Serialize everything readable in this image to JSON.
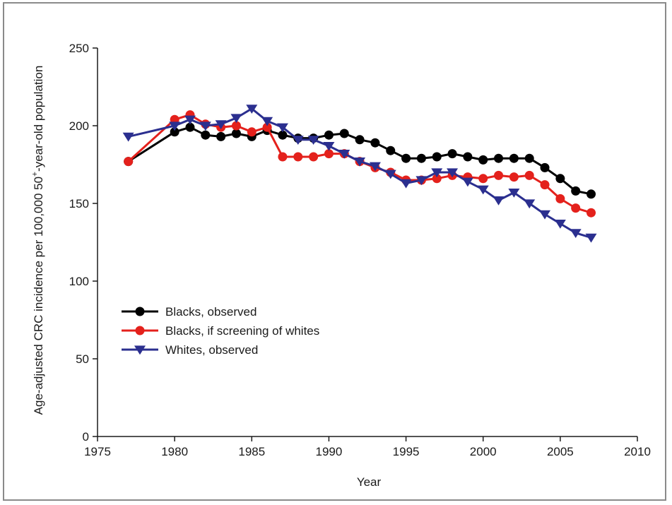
{
  "chart_data": {
    "type": "line",
    "title": "",
    "xlabel": "Year",
    "ylabel_main": "Age-adjusted CRC incidence per 100,000 50",
    "ylabel_sup": "+",
    "ylabel_tail": "-year-old population",
    "xlim": [
      1975,
      2010
    ],
    "ylim": [
      0,
      250
    ],
    "xticks": [
      1975,
      1980,
      1985,
      1990,
      1995,
      2000,
      2005,
      2010
    ],
    "yticks": [
      0,
      50,
      100,
      150,
      200,
      250
    ],
    "legend_position": "lower-left",
    "grid": false,
    "series": [
      {
        "name": "Blacks, observed",
        "color": "#000000",
        "marker": "circle",
        "x": [
          1977,
          1980,
          1981,
          1982,
          1983,
          1984,
          1985,
          1986,
          1987,
          1988,
          1989,
          1990,
          1991,
          1992,
          1993,
          1994,
          1995,
          1996,
          1997,
          1998,
          1999,
          2000,
          2001,
          2002,
          2003,
          2004,
          2005,
          2006,
          2007
        ],
        "values": [
          177,
          196,
          199,
          194,
          193,
          195,
          193,
          197,
          194,
          192,
          192,
          194,
          195,
          191,
          189,
          184,
          179,
          179,
          180,
          182,
          180,
          178,
          179,
          179,
          179,
          173,
          166,
          158,
          156
        ]
      },
      {
        "name": "Blacks, if screening of whites",
        "color": "#e4211c",
        "marker": "circle",
        "x": [
          1977,
          1980,
          1981,
          1982,
          1983,
          1984,
          1985,
          1986,
          1987,
          1988,
          1989,
          1990,
          1991,
          1992,
          1993,
          1994,
          1995,
          1996,
          1997,
          1998,
          1999,
          2000,
          2001,
          2002,
          2003,
          2004,
          2005,
          2006,
          2007
        ],
        "values": [
          177,
          204,
          207,
          201,
          199,
          200,
          196,
          199,
          180,
          180,
          180,
          182,
          182,
          177,
          173,
          170,
          165,
          165,
          166,
          168,
          167,
          166,
          168,
          167,
          168,
          162,
          153,
          147,
          144
        ]
      },
      {
        "name": "Whites, observed",
        "color": "#2b2f8f",
        "marker": "triangle-down",
        "x": [
          1977,
          1980,
          1981,
          1982,
          1983,
          1984,
          1985,
          1986,
          1987,
          1988,
          1989,
          1990,
          1991,
          1992,
          1993,
          1994,
          1995,
          1996,
          1997,
          1998,
          1999,
          2000,
          2001,
          2002,
          2003,
          2004,
          2005,
          2006,
          2007
        ],
        "values": [
          193,
          200,
          204,
          200,
          201,
          205,
          211,
          203,
          199,
          191,
          191,
          187,
          182,
          177,
          174,
          169,
          163,
          165,
          170,
          170,
          164,
          159,
          152,
          157,
          150,
          143,
          137,
          131,
          128
        ]
      }
    ]
  }
}
